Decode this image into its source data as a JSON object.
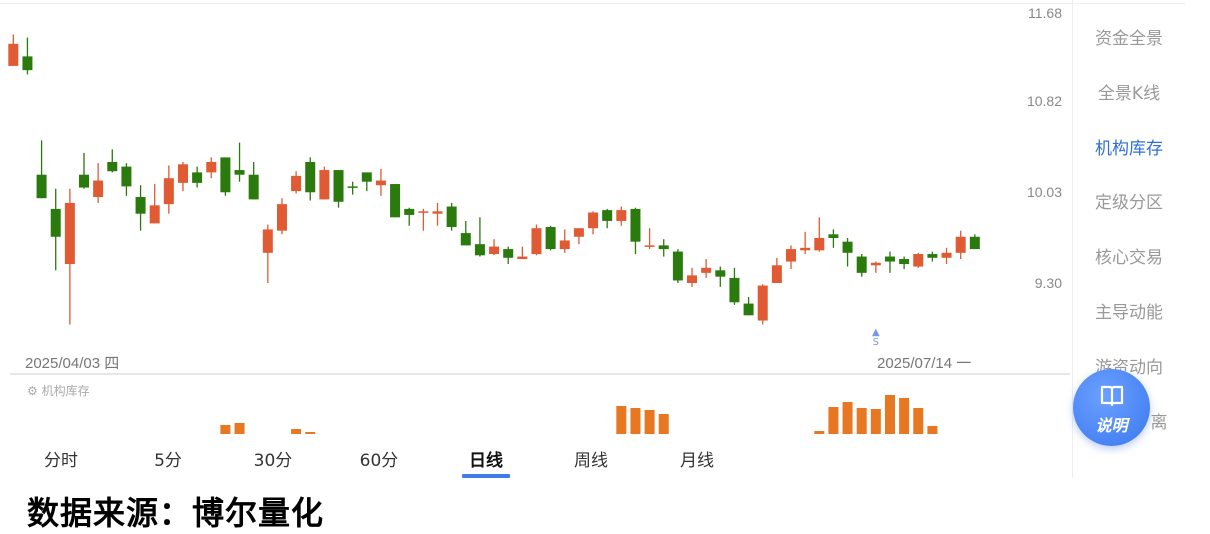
{
  "chart_data": {
    "type": "candlestick",
    "y_scale": "log",
    "y_ticks": [
      "11.68",
      "10.82",
      "10.03",
      "9.30"
    ],
    "ylim": [
      9.3,
      11.68
    ],
    "x_labels": {
      "start": "2025/04/03 四",
      "end": "2025/07/14 一"
    },
    "colors": {
      "up": "#e05a33",
      "down": "#2a7a0e",
      "indicator": "#e87722",
      "signal": "#7b96e8"
    },
    "candles_ohlc": [
      [
        11.17,
        11.47,
        11.17,
        11.38
      ],
      [
        11.26,
        11.44,
        11.09,
        11.13
      ],
      [
        10.19,
        10.49,
        9.99,
        9.99
      ],
      [
        9.9,
        10.07,
        9.4,
        9.67
      ],
      [
        9.45,
        10.07,
        8.98,
        9.95
      ],
      [
        10.19,
        10.38,
        10.07,
        10.08
      ],
      [
        10.0,
        10.29,
        9.95,
        10.14
      ],
      [
        10.3,
        10.41,
        10.21,
        10.22
      ],
      [
        10.26,
        10.29,
        10.01,
        10.09
      ],
      [
        10.0,
        10.1,
        9.72,
        9.86
      ],
      [
        9.78,
        10.11,
        9.78,
        9.93
      ],
      [
        9.94,
        10.27,
        9.86,
        10.16
      ],
      [
        10.12,
        10.3,
        10.05,
        10.28
      ],
      [
        10.21,
        10.26,
        10.08,
        10.12
      ],
      [
        10.21,
        10.34,
        10.16,
        10.3
      ],
      [
        10.34,
        10.34,
        10.01,
        10.04
      ],
      [
        10.23,
        10.47,
        10.13,
        10.19
      ],
      [
        10.19,
        10.3,
        9.98,
        9.98
      ],
      [
        9.54,
        9.77,
        9.3,
        9.73
      ],
      [
        9.72,
        9.99,
        9.69,
        9.94
      ],
      [
        10.05,
        10.22,
        10.03,
        10.18
      ],
      [
        10.3,
        10.34,
        9.97,
        10.04
      ],
      [
        9.98,
        10.26,
        9.98,
        10.23
      ],
      [
        10.23,
        10.23,
        9.91,
        9.96
      ],
      [
        10.09,
        10.13,
        10.02,
        10.08
      ],
      [
        10.21,
        10.21,
        10.05,
        10.13
      ],
      [
        10.1,
        10.24,
        10.01,
        10.14
      ],
      [
        10.11,
        10.11,
        9.83,
        9.83
      ],
      [
        9.9,
        9.91,
        9.76,
        9.85
      ],
      [
        9.87,
        9.9,
        9.72,
        9.88
      ],
      [
        9.86,
        9.95,
        9.76,
        9.88
      ],
      [
        9.92,
        9.95,
        9.72,
        9.75
      ],
      [
        9.7,
        9.8,
        9.6,
        9.6
      ],
      [
        9.61,
        9.83,
        9.51,
        9.52
      ],
      [
        9.53,
        9.65,
        9.52,
        9.59
      ],
      [
        9.57,
        9.59,
        9.45,
        9.5
      ],
      [
        9.49,
        9.59,
        9.49,
        9.51
      ],
      [
        9.53,
        9.77,
        9.52,
        9.74
      ],
      [
        9.75,
        9.76,
        9.56,
        9.57
      ],
      [
        9.57,
        9.73,
        9.54,
        9.64
      ],
      [
        9.67,
        9.74,
        9.61,
        9.74
      ],
      [
        9.74,
        9.88,
        9.69,
        9.87
      ],
      [
        9.89,
        9.9,
        9.74,
        9.8
      ],
      [
        9.8,
        9.92,
        9.76,
        9.89
      ],
      [
        9.9,
        9.91,
        9.53,
        9.63
      ],
      [
        9.59,
        9.74,
        9.57,
        9.6
      ],
      [
        9.6,
        9.65,
        9.51,
        9.57
      ],
      [
        9.55,
        9.57,
        9.3,
        9.32
      ],
      [
        9.3,
        9.42,
        9.27,
        9.36
      ],
      [
        9.38,
        9.49,
        9.34,
        9.42
      ],
      [
        9.4,
        9.43,
        9.27,
        9.35
      ],
      [
        9.34,
        9.42,
        9.13,
        9.15
      ],
      [
        9.14,
        9.19,
        9.05,
        9.05
      ],
      [
        9.01,
        9.29,
        8.98,
        9.28
      ],
      [
        9.3,
        9.5,
        9.3,
        9.44
      ],
      [
        9.47,
        9.6,
        9.41,
        9.57
      ],
      [
        9.56,
        9.71,
        9.53,
        9.58
      ],
      [
        9.56,
        9.83,
        9.55,
        9.66
      ],
      [
        9.69,
        9.73,
        9.58,
        9.66
      ],
      [
        9.63,
        9.66,
        9.43,
        9.54
      ],
      [
        9.51,
        9.53,
        9.35,
        9.38
      ],
      [
        9.44,
        9.47,
        9.38,
        9.46
      ],
      [
        9.51,
        9.55,
        9.38,
        9.47
      ],
      [
        9.49,
        9.51,
        9.41,
        9.45
      ],
      [
        9.43,
        9.54,
        9.42,
        9.53
      ],
      [
        9.53,
        9.55,
        9.47,
        9.5
      ],
      [
        9.5,
        9.58,
        9.45,
        9.54
      ],
      [
        9.54,
        9.72,
        9.49,
        9.67
      ],
      [
        9.67,
        9.69,
        9.57,
        9.57
      ]
    ],
    "signal": {
      "label": "S",
      "candle_index": 61
    },
    "indicator": {
      "name": "机构库存",
      "values": [
        0,
        0,
        0,
        0,
        0,
        0,
        0,
        0,
        0,
        0,
        0,
        0,
        0,
        0,
        0,
        9,
        11,
        0,
        0,
        0,
        5,
        2,
        0,
        0,
        0,
        0,
        0,
        0,
        0,
        0,
        0,
        0,
        0,
        0,
        0,
        0,
        0,
        0,
        0,
        0,
        0,
        0,
        0,
        28,
        26,
        24,
        20,
        0,
        0,
        0,
        0,
        0,
        0,
        0,
        0,
        0,
        0,
        3,
        27,
        32,
        26,
        25,
        39,
        36,
        26,
        8,
        0,
        0,
        0
      ]
    }
  },
  "sidebar": {
    "items": [
      {
        "label": "资金全景",
        "active": false
      },
      {
        "label": "全景K线",
        "active": false
      },
      {
        "label": "机构库存",
        "active": true
      },
      {
        "label": "定级分区",
        "active": false
      },
      {
        "label": "核心交易",
        "active": false
      },
      {
        "label": "主导动能",
        "active": false
      },
      {
        "label": "游资动向",
        "active": false
      },
      {
        "label": "离",
        "active": false
      }
    ],
    "help_button": {
      "label": "说明",
      "icon": "book-icon"
    }
  },
  "tabs": [
    {
      "label": "分时"
    },
    {
      "label": "5分"
    },
    {
      "label": "30分"
    },
    {
      "label": "60分"
    },
    {
      "label": "日线",
      "active": true
    },
    {
      "label": "周线"
    },
    {
      "label": "月线"
    }
  ],
  "indicator_panel": {
    "label": "机构库存",
    "icon": "gear-icon"
  },
  "footer": "数据来源：博尔量化"
}
